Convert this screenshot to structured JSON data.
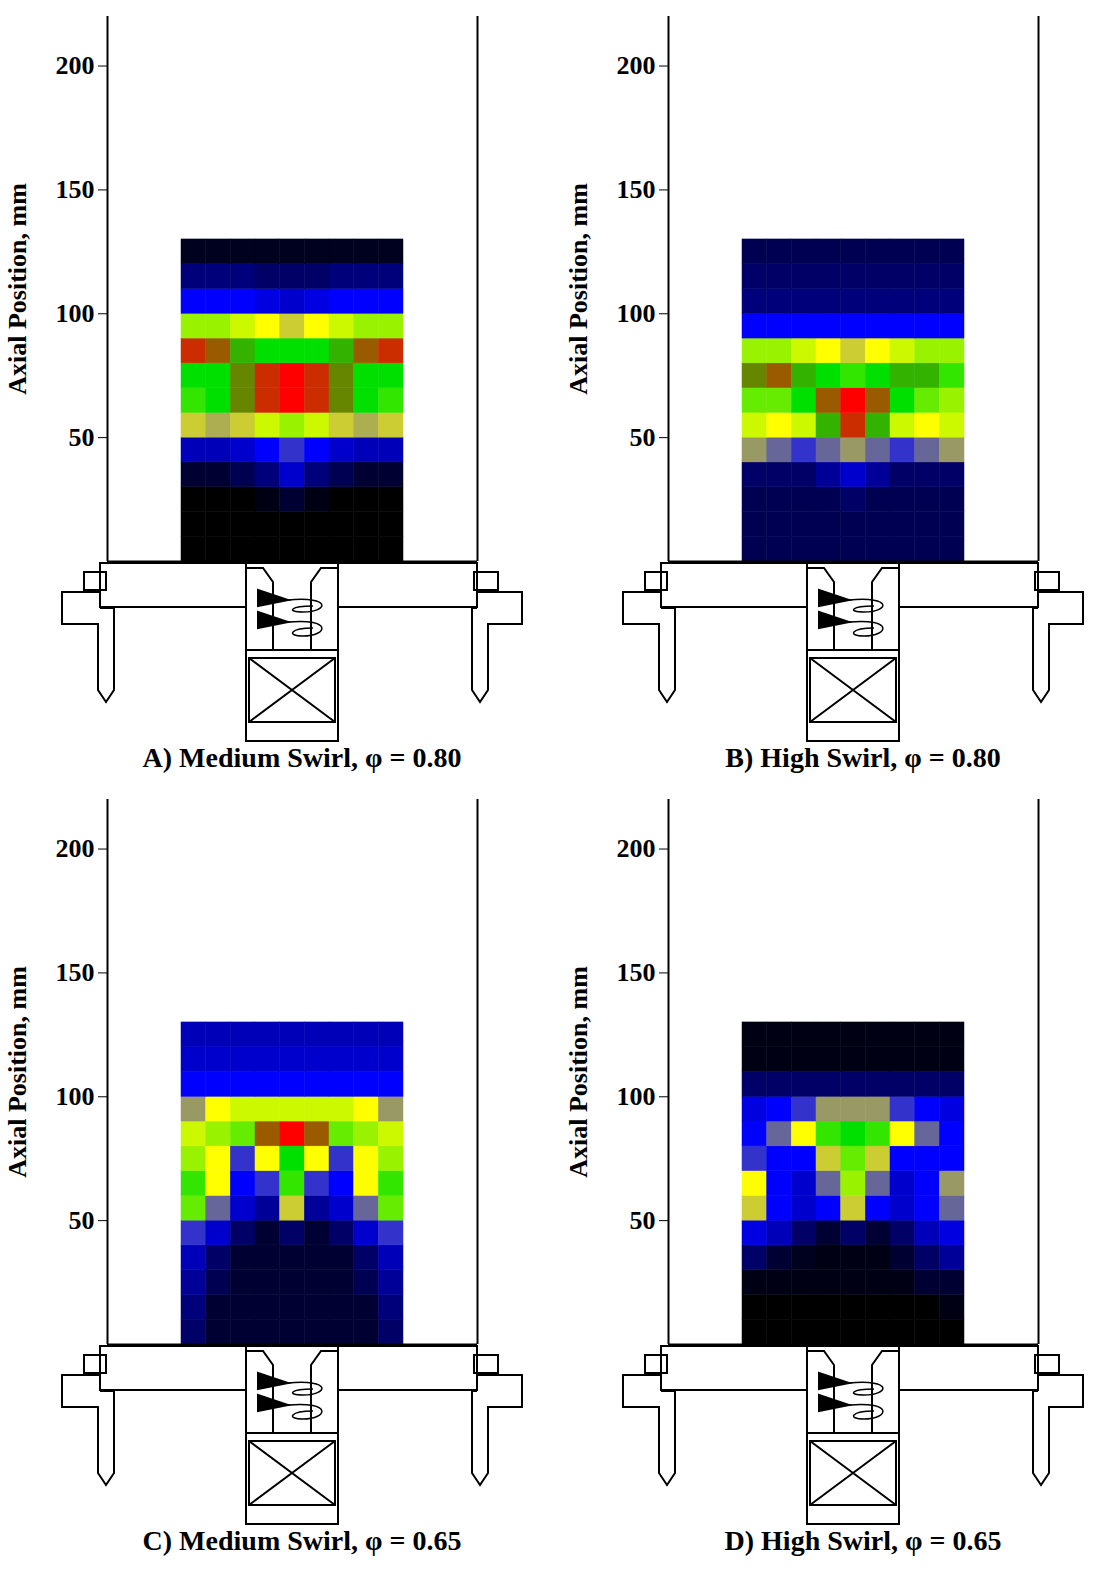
{
  "chart_data": [
    {
      "type": "heatmap",
      "title": "A) Medium Swirl, φ = 0.80",
      "ylabel": "Axial Position, mm",
      "ylim": [
        0,
        220
      ],
      "yticks": [
        50,
        100,
        150,
        200
      ],
      "xlim": [
        -75,
        75
      ],
      "tick_labels": "y",
      "x_edges": [
        -45,
        -35,
        -25,
        -15,
        -5,
        5,
        15,
        25,
        35,
        45
      ],
      "y_edges": [
        0,
        10,
        20,
        30,
        40,
        50,
        60,
        70,
        80,
        90,
        100,
        110,
        120,
        130
      ],
      "intensity_range": [
        0,
        1
      ],
      "colors": [
        "#000000",
        "#0000ff",
        "#ffff00",
        "#00e000",
        "#ff0000"
      ],
      "cells": [
        [
          0,
          0,
          0,
          0,
          0,
          0,
          0,
          0,
          0
        ],
        [
          0,
          0,
          0,
          0,
          0,
          0,
          0,
          0,
          0
        ],
        [
          0,
          0,
          0,
          0.02,
          0.05,
          0.02,
          0,
          0,
          0
        ],
        [
          0.05,
          0.05,
          0.08,
          0.12,
          0.2,
          0.12,
          0.08,
          0.05,
          0.05
        ],
        [
          0.18,
          0.18,
          0.2,
          0.25,
          0.3,
          0.25,
          0.2,
          0.18,
          0.18
        ],
        [
          0.45,
          0.42,
          0.45,
          0.55,
          0.6,
          0.55,
          0.45,
          0.42,
          0.45
        ],
        [
          0.7,
          0.75,
          0.85,
          0.95,
          1,
          0.95,
          0.85,
          0.75,
          0.7
        ],
        [
          0.75,
          0.75,
          0.85,
          0.95,
          1,
          0.95,
          0.85,
          0.75,
          0.75
        ],
        [
          0.95,
          0.9,
          0.8,
          0.75,
          0.75,
          0.75,
          0.8,
          0.9,
          0.95
        ],
        [
          0.6,
          0.6,
          0.55,
          0.5,
          0.45,
          0.5,
          0.55,
          0.6,
          0.6
        ],
        [
          0.25,
          0.25,
          0.25,
          0.22,
          0.2,
          0.22,
          0.25,
          0.25,
          0.25
        ],
        [
          0.12,
          0.12,
          0.12,
          0.1,
          0.1,
          0.1,
          0.12,
          0.12,
          0.12
        ],
        [
          0.03,
          0.03,
          0.03,
          0.03,
          0.03,
          0.03,
          0.03,
          0.03,
          0.03
        ]
      ]
    },
    {
      "type": "heatmap",
      "title": "B) High Swirl, φ = 0.80",
      "ylabel": "Axial Position, mm",
      "ylim": [
        0,
        220
      ],
      "yticks": [
        50,
        100,
        150,
        200
      ],
      "xlim": [
        -75,
        75
      ],
      "tick_labels": "y",
      "x_edges": [
        -45,
        -35,
        -25,
        -15,
        -5,
        5,
        15,
        25,
        35,
        45
      ],
      "y_edges": [
        0,
        10,
        20,
        30,
        40,
        50,
        60,
        70,
        80,
        90,
        100,
        110,
        120,
        130
      ],
      "intensity_range": [
        0,
        1
      ],
      "colors": [
        "#000000",
        "#0000ff",
        "#ffff00",
        "#00e000",
        "#ff0000"
      ],
      "cells": [
        [
          0.08,
          0.08,
          0.08,
          0.08,
          0.08,
          0.08,
          0.08,
          0.08,
          0.08
        ],
        [
          0.08,
          0.08,
          0.08,
          0.08,
          0.08,
          0.08,
          0.08,
          0.08,
          0.08
        ],
        [
          0.08,
          0.08,
          0.08,
          0.08,
          0.1,
          0.08,
          0.08,
          0.08,
          0.08
        ],
        [
          0.1,
          0.1,
          0.1,
          0.15,
          0.2,
          0.15,
          0.1,
          0.1,
          0.1
        ],
        [
          0.4,
          0.35,
          0.3,
          0.35,
          0.4,
          0.35,
          0.3,
          0.35,
          0.4
        ],
        [
          0.55,
          0.5,
          0.55,
          0.8,
          0.95,
          0.8,
          0.55,
          0.5,
          0.55
        ],
        [
          0.65,
          0.65,
          0.75,
          0.9,
          1,
          0.9,
          0.75,
          0.65,
          0.6
        ],
        [
          0.85,
          0.9,
          0.8,
          0.75,
          0.7,
          0.75,
          0.8,
          0.8,
          0.7
        ],
        [
          0.6,
          0.6,
          0.55,
          0.5,
          0.45,
          0.5,
          0.55,
          0.6,
          0.6
        ],
        [
          0.25,
          0.25,
          0.25,
          0.25,
          0.25,
          0.25,
          0.25,
          0.25,
          0.25
        ],
        [
          0.12,
          0.12,
          0.12,
          0.12,
          0.12,
          0.12,
          0.12,
          0.12,
          0.12
        ],
        [
          0.1,
          0.1,
          0.1,
          0.1,
          0.1,
          0.1,
          0.1,
          0.1,
          0.1
        ],
        [
          0.08,
          0.08,
          0.08,
          0.08,
          0.08,
          0.08,
          0.08,
          0.08,
          0.08
        ]
      ]
    },
    {
      "type": "heatmap",
      "title": "C) Medium Swirl, φ = 0.65",
      "ylabel": "Axial Position, mm",
      "ylim": [
        0,
        220
      ],
      "yticks": [
        50,
        100,
        150,
        200
      ],
      "xlim": [
        -75,
        75
      ],
      "tick_labels": "y",
      "x_edges": [
        -45,
        -35,
        -25,
        -15,
        -5,
        5,
        15,
        25,
        35,
        45
      ],
      "y_edges": [
        0,
        10,
        20,
        30,
        40,
        50,
        60,
        70,
        80,
        90,
        100,
        110,
        120,
        130
      ],
      "intensity_range": [
        0,
        1
      ],
      "colors": [
        "#000000",
        "#0000ff",
        "#ffff00",
        "#00e000",
        "#ff0000"
      ],
      "cells": [
        [
          0.1,
          0.05,
          0.05,
          0.05,
          0.05,
          0.05,
          0.05,
          0.05,
          0.1
        ],
        [
          0.12,
          0.05,
          0.05,
          0.05,
          0.05,
          0.05,
          0.05,
          0.05,
          0.12
        ],
        [
          0.15,
          0.08,
          0.05,
          0.05,
          0.05,
          0.05,
          0.05,
          0.08,
          0.15
        ],
        [
          0.18,
          0.1,
          0.05,
          0.05,
          0.05,
          0.05,
          0.05,
          0.1,
          0.18
        ],
        [
          0.3,
          0.2,
          0.1,
          0.05,
          0.1,
          0.05,
          0.1,
          0.2,
          0.3
        ],
        [
          0.65,
          0.35,
          0.2,
          0.15,
          0.45,
          0.15,
          0.2,
          0.35,
          0.65
        ],
        [
          0.7,
          0.5,
          0.25,
          0.3,
          0.7,
          0.3,
          0.25,
          0.5,
          0.7
        ],
        [
          0.6,
          0.5,
          0.3,
          0.5,
          0.75,
          0.5,
          0.3,
          0.5,
          0.6
        ],
        [
          0.55,
          0.6,
          0.65,
          0.9,
          1,
          0.9,
          0.65,
          0.6,
          0.55
        ],
        [
          0.4,
          0.5,
          0.55,
          0.55,
          0.55,
          0.55,
          0.55,
          0.5,
          0.4
        ],
        [
          0.25,
          0.25,
          0.25,
          0.25,
          0.25,
          0.25,
          0.25,
          0.25,
          0.25
        ],
        [
          0.2,
          0.2,
          0.2,
          0.2,
          0.2,
          0.2,
          0.2,
          0.2,
          0.2
        ],
        [
          0.18,
          0.18,
          0.18,
          0.18,
          0.18,
          0.18,
          0.18,
          0.18,
          0.18
        ]
      ]
    },
    {
      "type": "heatmap",
      "title": "D) High Swirl, φ = 0.65",
      "ylabel": "Axial Position, mm",
      "ylim": [
        0,
        220
      ],
      "yticks": [
        50,
        100,
        150,
        200
      ],
      "xlim": [
        -75,
        75
      ],
      "tick_labels": "y",
      "x_edges": [
        -45,
        -35,
        -25,
        -15,
        -5,
        5,
        15,
        25,
        35,
        45
      ],
      "y_edges": [
        0,
        10,
        20,
        30,
        40,
        50,
        60,
        70,
        80,
        90,
        100,
        110,
        120,
        130
      ],
      "intensity_range": [
        0,
        1
      ],
      "colors": [
        "#000000",
        "#0000ff",
        "#ffff00",
        "#00e000",
        "#ff0000"
      ],
      "cells": [
        [
          0,
          0,
          0,
          0,
          0,
          0,
          0,
          0,
          0
        ],
        [
          0,
          0,
          0,
          0,
          0,
          0,
          0,
          0,
          0.02
        ],
        [
          0.02,
          0.02,
          0.02,
          0.02,
          0.02,
          0.02,
          0.02,
          0.05,
          0.05
        ],
        [
          0.1,
          0.05,
          0.03,
          0.02,
          0.02,
          0.02,
          0.05,
          0.1,
          0.15
        ],
        [
          0.22,
          0.18,
          0.1,
          0.05,
          0.1,
          0.05,
          0.1,
          0.18,
          0.22
        ],
        [
          0.45,
          0.25,
          0.2,
          0.25,
          0.45,
          0.25,
          0.2,
          0.25,
          0.35
        ],
        [
          0.5,
          0.25,
          0.2,
          0.35,
          0.6,
          0.35,
          0.2,
          0.25,
          0.4
        ],
        [
          0.3,
          0.25,
          0.25,
          0.45,
          0.65,
          0.45,
          0.25,
          0.25,
          0.25
        ],
        [
          0.25,
          0.35,
          0.5,
          0.7,
          0.75,
          0.7,
          0.5,
          0.35,
          0.25
        ],
        [
          0.22,
          0.25,
          0.3,
          0.4,
          0.4,
          0.4,
          0.3,
          0.25,
          0.22
        ],
        [
          0.1,
          0.1,
          0.1,
          0.1,
          0.1,
          0.1,
          0.1,
          0.1,
          0.1
        ],
        [
          0.02,
          0.02,
          0.02,
          0.02,
          0.02,
          0.02,
          0.02,
          0.02,
          0.02
        ],
        [
          0.02,
          0.02,
          0.02,
          0.02,
          0.02,
          0.02,
          0.02,
          0.02,
          0.02
        ]
      ]
    }
  ]
}
